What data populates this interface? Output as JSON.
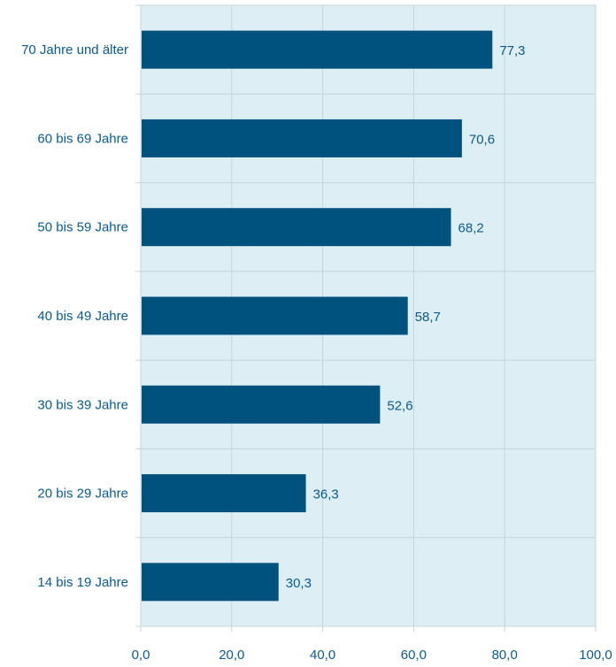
{
  "chart_data": {
    "type": "bar",
    "orientation": "horizontal",
    "categories": [
      "70 Jahre und älter",
      "60 bis 69 Jahre",
      "50 bis 59 Jahre",
      "40 bis 49 Jahre",
      "30 bis 39 Jahre",
      "20 bis 29 Jahre",
      "14 bis 19 Jahre"
    ],
    "values": [
      77.3,
      70.6,
      68.2,
      58.7,
      52.6,
      36.3,
      30.3
    ],
    "value_labels": [
      "77,3",
      "70,6",
      "68,2",
      "58,7",
      "52,6",
      "36,3",
      "30,3"
    ],
    "title": "",
    "xlabel": "",
    "ylabel": "",
    "xlim": [
      0,
      100
    ],
    "x_ticks": [
      0,
      20,
      40,
      60,
      80,
      100
    ],
    "x_tick_labels": [
      "0,0",
      "20,0",
      "40,0",
      "60,0",
      "80,0",
      "100,0"
    ],
    "grid": true,
    "legend": "none",
    "colors": {
      "bar": "#00527e",
      "plot_background": "#ddeef4",
      "grid": "#c5d4da",
      "text": "#0b5a8a"
    }
  }
}
